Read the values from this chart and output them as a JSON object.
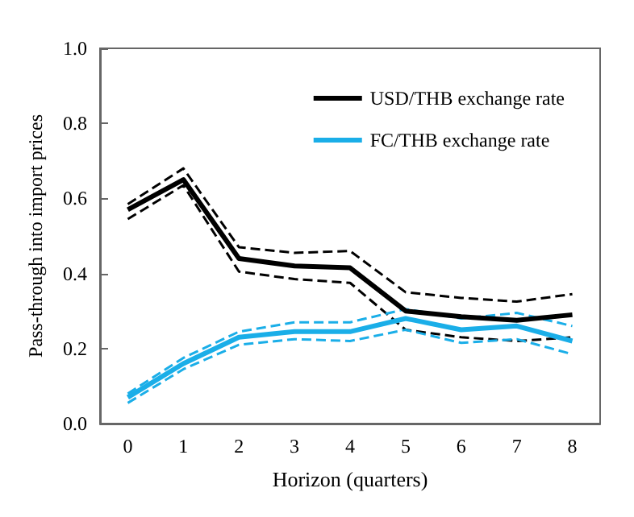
{
  "chart_data": {
    "type": "line",
    "xlabel": "Horizon (quarters)",
    "ylabel": "Pass-through into import prices",
    "categories": [
      "0",
      "1",
      "2",
      "3",
      "4",
      "5",
      "6",
      "7",
      "8"
    ],
    "series": [
      {
        "name": "USD/THB exchange rate",
        "color": "#000000",
        "values": [
          0.57,
          0.65,
          0.44,
          0.42,
          0.415,
          0.3,
          0.285,
          0.275,
          0.29
        ]
      },
      {
        "color": "#000000",
        "line_style": "dashed",
        "values": [
          0.545,
          0.635,
          0.405,
          0.385,
          0.375,
          0.25,
          0.23,
          0.22,
          0.23
        ]
      },
      {
        "color": "#000000",
        "line_style": "dashed",
        "values": [
          0.585,
          0.68,
          0.47,
          0.455,
          0.46,
          0.35,
          0.335,
          0.325,
          0.345
        ]
      },
      {
        "name": "FC/THB exchange rate",
        "color": "#1aaee8",
        "values": [
          0.07,
          0.16,
          0.23,
          0.245,
          0.245,
          0.28,
          0.25,
          0.26,
          0.22
        ]
      },
      {
        "color": "#1aaee8",
        "line_style": "dashed",
        "values": [
          0.055,
          0.145,
          0.21,
          0.225,
          0.22,
          0.25,
          0.215,
          0.225,
          0.185
        ]
      },
      {
        "color": "#1aaee8",
        "line_style": "dashed",
        "values": [
          0.08,
          0.175,
          0.245,
          0.27,
          0.27,
          0.305,
          0.28,
          0.295,
          0.26
        ]
      }
    ],
    "ylim": [
      0,
      1
    ],
    "yticks": [
      {
        "value": 0,
        "label": "0.0"
      },
      {
        "value": 0.2,
        "label": "0.2"
      },
      {
        "value": 0.4,
        "label": "0.4"
      },
      {
        "value": 0.6,
        "label": "0.6"
      },
      {
        "value": 0.8,
        "label": "0.8"
      },
      {
        "value": 1,
        "label": "1.0"
      }
    ],
    "grid": false,
    "legend": "top right",
    "marker": "none",
    "line_style": "solid"
  }
}
